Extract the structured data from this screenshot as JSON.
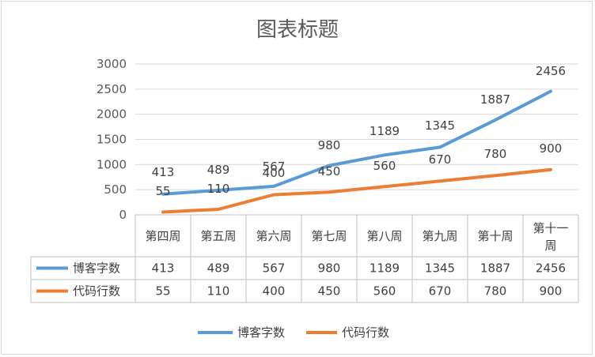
{
  "chart_data": {
    "type": "line",
    "title": "图表标题",
    "categories": [
      "第四周",
      "第五周",
      "第六周",
      "第七周",
      "第八周",
      "第九周",
      "第十周",
      "第十一周"
    ],
    "series": [
      {
        "name": "博客字数",
        "color": "#5b9bd5",
        "values": [
          413,
          489,
          567,
          980,
          1189,
          1345,
          1887,
          2456
        ]
      },
      {
        "name": "代码行数",
        "color": "#ed7d31",
        "values": [
          55,
          110,
          400,
          450,
          560,
          670,
          780,
          900
        ]
      }
    ],
    "ylim": [
      0,
      3000
    ],
    "yticks": [
      0,
      500,
      1000,
      1500,
      2000,
      2500,
      3000
    ],
    "grid": true,
    "data_table": true,
    "legend": "bottom"
  }
}
